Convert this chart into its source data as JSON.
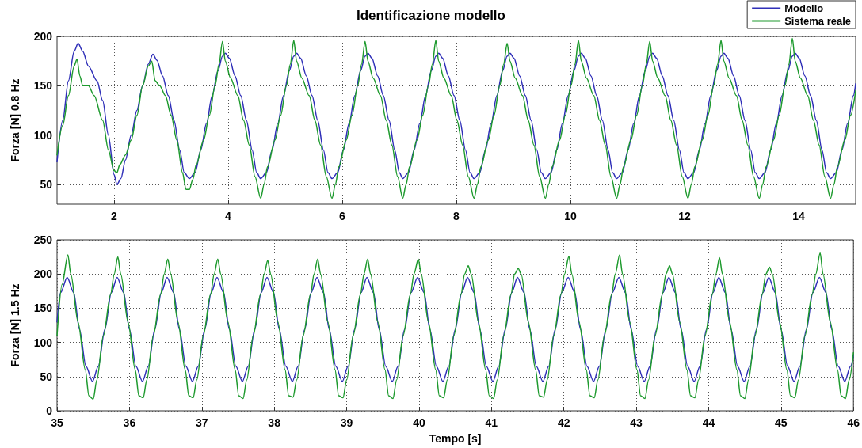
{
  "chart_data": [
    {
      "type": "line",
      "title": "Identificazione modello",
      "ylabel": "Forza [N] 0.8 Hz",
      "xlim": [
        1,
        15
      ],
      "xticks": [
        2,
        4,
        6,
        8,
        10,
        12,
        14
      ],
      "ylim": [
        30,
        200
      ],
      "yticks": [
        50,
        100,
        150,
        200
      ],
      "grid": true,
      "legend": "top right",
      "marker": "none",
      "line_style": "solid",
      "series": [
        {
          "name": "Modello",
          "color": "#2f2fb8",
          "x": [
            1.0,
            1.1,
            1.2,
            1.3,
            1.37,
            1.45,
            1.55,
            1.7,
            1.8,
            1.9,
            2.0,
            2.05,
            2.12,
            2.2,
            2.3,
            2.4,
            2.5,
            2.6,
            2.68,
            2.75,
            2.85,
            2.95,
            3.05,
            3.15,
            3.23,
            3.32,
            3.42,
            3.52,
            3.62,
            3.72,
            3.82,
            3.9,
            3.95,
            4.02,
            4.12,
            4.22,
            4.32,
            4.42,
            4.5,
            4.57,
            4.67,
            4.77,
            4.87,
            4.97,
            5.07,
            5.15,
            5.2,
            5.27,
            5.37,
            5.47,
            5.57,
            5.67,
            5.75,
            5.82,
            5.92,
            6.02,
            6.12,
            6.22,
            6.32,
            6.4,
            6.45,
            6.52,
            6.62,
            6.72,
            6.82,
            6.92,
            7.0,
            7.06,
            7.16,
            7.26,
            7.36,
            7.46,
            7.56,
            7.64,
            7.69,
            7.76,
            7.86,
            7.96,
            8.06,
            8.16,
            8.24,
            8.31,
            8.41,
            8.51,
            8.61,
            8.71,
            8.81,
            8.89,
            8.94,
            9.01,
            9.11,
            9.21,
            9.31,
            9.41,
            9.49,
            9.56,
            9.66,
            9.76,
            9.86,
            9.96,
            10.06,
            10.14,
            10.19,
            10.26,
            10.36,
            10.46,
            10.56,
            10.66,
            10.74,
            10.81,
            10.91,
            11.01,
            11.11,
            11.21,
            11.31,
            11.39,
            11.44,
            11.51,
            11.61,
            11.71,
            11.81,
            11.91,
            11.99,
            12.06,
            12.16,
            12.26,
            12.36,
            12.46,
            12.56,
            12.64,
            12.69,
            12.76,
            12.86,
            12.96,
            13.06,
            13.16,
            13.24,
            13.31,
            13.41,
            13.51,
            13.61,
            13.71,
            13.81,
            13.89,
            13.94,
            14.01,
            14.11,
            14.21,
            14.31,
            14.41,
            14.49,
            14.56,
            14.66,
            14.76,
            14.86,
            14.96,
            15.0
          ],
          "values": [
            73,
            115,
            155,
            185,
            193,
            185,
            170,
            155,
            135,
            100,
            60,
            50,
            56,
            75,
            100,
            125,
            150,
            172,
            182,
            176,
            160,
            140,
            115,
            85,
            62,
            56,
            62,
            85,
            112,
            140,
            165,
            180,
            183,
            178,
            160,
            140,
            115,
            85,
            62,
            56,
            62,
            85,
            112,
            140,
            165,
            180,
            183,
            178,
            160,
            140,
            115,
            85,
            62,
            56,
            62,
            85,
            112,
            140,
            165,
            180,
            183,
            178,
            160,
            140,
            115,
            85,
            62,
            56,
            62,
            85,
            112,
            140,
            165,
            180,
            183,
            178,
            160,
            140,
            115,
            85,
            62,
            56,
            62,
            85,
            112,
            140,
            165,
            180,
            183,
            178,
            160,
            140,
            115,
            85,
            62,
            56,
            62,
            85,
            112,
            140,
            165,
            180,
            183,
            178,
            160,
            140,
            115,
            85,
            62,
            56,
            62,
            85,
            112,
            140,
            165,
            180,
            183,
            178,
            160,
            140,
            115,
            85,
            62,
            56,
            62,
            85,
            112,
            140,
            165,
            180,
            183,
            178,
            160,
            140,
            115,
            85,
            62,
            56,
            62,
            85,
            112,
            140,
            165,
            180,
            183,
            178,
            160,
            140,
            115,
            85,
            62,
            56,
            62,
            85,
            112,
            140,
            152
          ]
        },
        {
          "name": "Sistema reale",
          "color": "#1e9a2e",
          "x": [
            1.0,
            1.1,
            1.2,
            1.3,
            1.35,
            1.4,
            1.45,
            1.55,
            1.65,
            1.8,
            1.9,
            2.0,
            2.05,
            2.1,
            2.2,
            2.3,
            2.4,
            2.5,
            2.6,
            2.66,
            2.72,
            2.8,
            2.9,
            3.0,
            3.1,
            3.2,
            3.26,
            3.32,
            3.38,
            3.44,
            3.57,
            3.67,
            3.77,
            3.84,
            3.9,
            3.95,
            4.04,
            4.17,
            4.27,
            4.37,
            4.47,
            4.57,
            4.63,
            4.69,
            4.82,
            4.92,
            5.02,
            5.09,
            5.15,
            5.2,
            5.29,
            5.42,
            5.52,
            5.62,
            5.72,
            5.82,
            5.88,
            5.94,
            6.07,
            6.17,
            6.27,
            6.34,
            6.4,
            6.45,
            6.54,
            6.67,
            6.77,
            6.87,
            6.97,
            7.06,
            7.12,
            7.18,
            7.31,
            7.41,
            7.51,
            7.58,
            7.64,
            7.69,
            7.78,
            7.91,
            8.01,
            8.11,
            8.21,
            8.31,
            8.37,
            8.43,
            8.56,
            8.66,
            8.76,
            8.83,
            8.89,
            8.94,
            9.03,
            9.16,
            9.26,
            9.36,
            9.46,
            9.56,
            9.62,
            9.68,
            9.81,
            9.91,
            10.01,
            10.08,
            10.14,
            10.19,
            10.28,
            10.41,
            10.51,
            10.61,
            10.71,
            10.81,
            10.87,
            10.93,
            11.06,
            11.16,
            11.26,
            11.33,
            11.39,
            11.44,
            11.53,
            11.66,
            11.76,
            11.86,
            11.96,
            12.06,
            12.12,
            12.18,
            12.31,
            12.41,
            12.51,
            12.58,
            12.64,
            12.69,
            12.78,
            12.91,
            13.01,
            13.11,
            13.21,
            13.31,
            13.37,
            13.43,
            13.56,
            13.66,
            13.76,
            13.83,
            13.89,
            13.94,
            14.03,
            14.16,
            14.26,
            14.36,
            14.46,
            14.56,
            14.62,
            14.68,
            14.81,
            14.91,
            15.0
          ],
          "values": [
            80,
            110,
            140,
            170,
            177,
            160,
            150,
            150,
            140,
            115,
            85,
            64,
            62,
            70,
            80,
            95,
            120,
            150,
            170,
            175,
            155,
            150,
            140,
            120,
            95,
            62,
            45,
            45,
            55,
            70,
            95,
            120,
            150,
            172,
            195,
            175,
            158,
            140,
            115,
            90,
            58,
            36,
            50,
            68,
            95,
            120,
            150,
            172,
            196,
            175,
            158,
            140,
            115,
            90,
            58,
            36,
            50,
            68,
            95,
            120,
            150,
            172,
            195,
            175,
            158,
            140,
            115,
            90,
            58,
            36,
            50,
            68,
            95,
            120,
            150,
            172,
            196,
            175,
            158,
            140,
            115,
            90,
            58,
            36,
            50,
            68,
            95,
            120,
            150,
            172,
            193,
            175,
            158,
            140,
            115,
            90,
            58,
            36,
            50,
            68,
            95,
            120,
            150,
            172,
            196,
            175,
            158,
            140,
            115,
            90,
            58,
            36,
            50,
            68,
            95,
            120,
            150,
            172,
            195,
            175,
            158,
            140,
            115,
            90,
            58,
            36,
            50,
            68,
            95,
            120,
            150,
            172,
            196,
            175,
            158,
            140,
            115,
            90,
            58,
            36,
            50,
            68,
            95,
            120,
            150,
            172,
            198,
            175,
            158,
            140,
            115,
            90,
            58,
            36,
            50,
            68,
            95,
            120,
            145
          ]
        }
      ]
    },
    {
      "type": "line",
      "xlabel": "Tempo [s]",
      "ylabel": "Forza [N] 1.5 Hz",
      "xlim": [
        35,
        46
      ],
      "xticks": [
        35,
        36,
        37,
        38,
        39,
        40,
        41,
        42,
        43,
        44,
        45,
        46
      ],
      "ylim": [
        0,
        250
      ],
      "yticks": [
        0,
        50,
        100,
        150,
        200,
        250
      ],
      "grid": true,
      "marker": "none",
      "line_style": "solid",
      "series": [
        {
          "color": "#2f2fb8",
          "x": [
            35.0,
            35.05,
            35.14,
            35.23,
            35.31,
            35.4,
            35.49,
            35.57,
            35.66,
            35.75,
            35.83,
            35.92,
            36.0,
            36.09,
            36.18,
            36.26,
            36.35,
            36.44,
            36.52,
            36.61,
            36.69,
            36.78,
            36.87,
            36.95,
            37.04,
            37.13,
            37.21,
            37.3,
            37.38,
            37.47,
            37.56,
            37.64,
            37.73,
            37.82,
            37.9,
            37.99,
            38.07,
            38.16,
            38.25,
            38.33,
            38.42,
            38.51,
            38.59,
            38.68,
            38.76,
            38.85,
            38.94,
            39.02,
            39.11,
            39.2,
            39.28,
            39.37,
            39.45,
            39.54,
            39.63,
            39.71,
            39.8,
            39.89,
            39.98,
            40.07,
            40.15,
            40.24,
            40.33,
            40.41,
            40.5,
            40.59,
            40.67,
            40.76,
            40.84,
            40.93,
            41.02,
            41.1,
            41.19,
            41.28,
            41.36,
            41.45,
            41.53,
            41.62,
            41.71,
            41.79,
            41.88,
            41.97,
            42.06,
            42.15,
            42.23,
            42.32,
            42.41,
            42.49,
            42.58,
            42.67,
            42.76,
            42.85,
            42.93,
            43.02,
            43.11,
            43.19,
            43.28,
            43.37,
            43.45,
            43.54,
            43.62,
            43.71,
            43.8,
            43.88,
            43.97,
            44.06,
            44.14,
            44.23,
            44.31,
            44.4,
            44.49,
            44.57,
            44.66,
            44.75,
            44.83,
            44.92,
            45.0,
            45.09,
            45.18,
            45.26,
            45.35,
            45.44,
            45.53,
            45.62,
            45.7,
            45.79,
            45.88,
            45.96,
            46.0
          ],
          "values": [
            130,
            173,
            195,
            173,
            119,
            65,
            43,
            65,
            119,
            173,
            195,
            173,
            119,
            65,
            43,
            65,
            119,
            173,
            195,
            173,
            119,
            65,
            43,
            65,
            119,
            173,
            195,
            173,
            119,
            65,
            43,
            65,
            119,
            173,
            195,
            173,
            119,
            65,
            43,
            65,
            119,
            173,
            195,
            173,
            119,
            65,
            43,
            65,
            119,
            173,
            195,
            173,
            119,
            65,
            43,
            65,
            119,
            173,
            195,
            173,
            119,
            65,
            43,
            65,
            119,
            173,
            195,
            173,
            119,
            65,
            43,
            65,
            119,
            173,
            195,
            173,
            119,
            65,
            43,
            65,
            119,
            173,
            195,
            173,
            119,
            65,
            43,
            65,
            119,
            173,
            195,
            173,
            119,
            65,
            43,
            65,
            119,
            173,
            195,
            173,
            119,
            65,
            43,
            65,
            119,
            173,
            195,
            173,
            119,
            65,
            43,
            65,
            119,
            173,
            195,
            173,
            119,
            65,
            43,
            65,
            119,
            173,
            195,
            173,
            119,
            65,
            43,
            65,
            81
          ]
        },
        {
          "color": "#1e9a2e",
          "x": [
            35.0,
            35.07,
            35.15,
            35.19,
            35.29,
            35.39,
            35.44,
            35.5,
            35.55,
            35.64,
            35.74,
            35.79,
            35.84,
            35.88,
            35.98,
            36.08,
            36.13,
            36.19,
            36.24,
            36.33,
            36.43,
            36.48,
            36.53,
            36.57,
            36.67,
            36.77,
            36.82,
            36.88,
            36.93,
            37.02,
            37.12,
            37.17,
            37.22,
            37.26,
            37.36,
            37.46,
            37.51,
            37.57,
            37.62,
            37.71,
            37.81,
            37.86,
            37.91,
            37.95,
            38.05,
            38.15,
            38.2,
            38.26,
            38.31,
            38.4,
            38.5,
            38.55,
            38.6,
            38.64,
            38.74,
            38.84,
            38.89,
            38.95,
            39.0,
            39.09,
            39.19,
            39.24,
            39.29,
            39.33,
            39.43,
            39.53,
            39.58,
            39.64,
            39.69,
            39.78,
            39.88,
            39.93,
            39.99,
            40.03,
            40.13,
            40.23,
            40.28,
            40.34,
            40.39,
            40.48,
            40.58,
            40.63,
            40.68,
            40.72,
            40.82,
            40.92,
            40.97,
            41.03,
            41.08,
            41.17,
            41.27,
            41.32,
            41.37,
            41.41,
            41.51,
            41.61,
            41.66,
            41.72,
            41.77,
            41.86,
            41.96,
            42.01,
            42.07,
            42.11,
            42.21,
            42.31,
            42.36,
            42.42,
            42.47,
            42.56,
            42.66,
            42.71,
            42.77,
            42.81,
            42.91,
            43.01,
            43.06,
            43.12,
            43.17,
            43.26,
            43.36,
            43.41,
            43.46,
            43.5,
            43.6,
            43.7,
            43.75,
            43.81,
            43.86,
            43.95,
            44.05,
            44.1,
            44.15,
            44.19,
            44.29,
            44.39,
            44.44,
            44.5,
            44.55,
            44.64,
            44.74,
            44.79,
            44.84,
            44.88,
            44.98,
            45.08,
            45.13,
            45.19,
            45.24,
            45.33,
            45.43,
            45.48,
            45.54,
            45.58,
            45.68,
            45.78,
            45.83,
            45.89,
            45.94,
            46.0
          ],
          "values": [
            110,
            185,
            228,
            200,
            130,
            60,
            22,
            17,
            45,
            110,
            170,
            200,
            225,
            200,
            130,
            60,
            22,
            19,
            45,
            110,
            170,
            200,
            222,
            200,
            130,
            60,
            22,
            19,
            45,
            110,
            170,
            200,
            222,
            200,
            130,
            60,
            22,
            18,
            45,
            110,
            170,
            200,
            220,
            200,
            130,
            60,
            22,
            20,
            45,
            110,
            170,
            200,
            222,
            200,
            130,
            60,
            22,
            19,
            45,
            110,
            170,
            200,
            222,
            200,
            130,
            60,
            22,
            18,
            45,
            110,
            170,
            200,
            222,
            200,
            130,
            60,
            22,
            19,
            45,
            110,
            170,
            200,
            212,
            200,
            130,
            60,
            22,
            18,
            45,
            110,
            170,
            200,
            208,
            200,
            130,
            60,
            22,
            20,
            45,
            110,
            170,
            200,
            226,
            200,
            130,
            60,
            22,
            19,
            45,
            110,
            170,
            200,
            228,
            200,
            130,
            60,
            22,
            18,
            45,
            110,
            170,
            200,
            212,
            200,
            130,
            60,
            22,
            19,
            45,
            110,
            170,
            200,
            224,
            200,
            130,
            60,
            22,
            18,
            45,
            110,
            170,
            200,
            210,
            200,
            130,
            60,
            22,
            19,
            45,
            110,
            170,
            200,
            231,
            200,
            130,
            60,
            22,
            18,
            45,
            85
          ]
        }
      ]
    }
  ]
}
